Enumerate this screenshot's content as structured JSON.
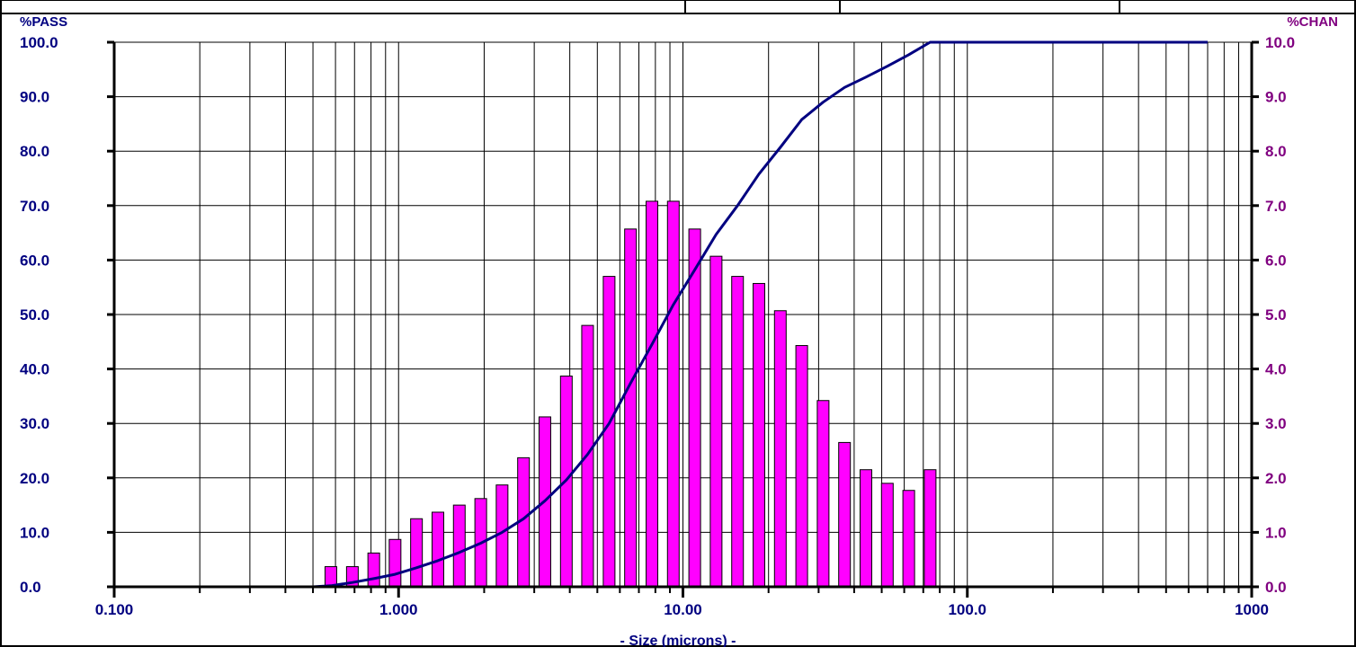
{
  "chart_data": {
    "type": "bar",
    "x_scale": "log",
    "xlabel": "- Size (microns) -",
    "ylabel_left": "%PASS",
    "ylabel_right": "%CHAN",
    "xlim": [
      0.1,
      1000
    ],
    "ylim_left": [
      0,
      100
    ],
    "ylim_right": [
      0,
      10
    ],
    "grid": true,
    "x_ticks": [
      {
        "value": 0.1,
        "label": "0.100"
      },
      {
        "value": 1,
        "label": "1.000"
      },
      {
        "value": 10,
        "label": "10.00"
      },
      {
        "value": 100,
        "label": "100.0"
      },
      {
        "value": 1000,
        "label": "1000"
      }
    ],
    "y_ticks_left": [
      "0.0",
      "10.0",
      "20.0",
      "30.0",
      "40.0",
      "50.0",
      "60.0",
      "70.0",
      "80.0",
      "90.0",
      "100.0"
    ],
    "y_ticks_right": [
      "0.0",
      "1.0",
      "2.0",
      "3.0",
      "4.0",
      "5.0",
      "6.0",
      "7.0",
      "8.0",
      "9.0",
      "10.0"
    ],
    "colors": {
      "bars": "#ff00ff",
      "line": "#000080",
      "left_axis_text": "#000080",
      "right_axis_text": "#800080"
    },
    "series": [
      {
        "type": "bar",
        "axis": "right",
        "x": [
          0.578,
          0.688,
          0.818,
          0.972,
          1.156,
          1.375,
          1.635,
          1.945,
          2.312,
          2.75,
          3.27,
          3.89,
          4.62,
          5.5,
          6.54,
          7.78,
          9.25,
          11.0,
          13.08,
          15.56,
          18.5,
          22.0,
          26.16,
          31.11,
          37.0,
          44.0,
          52.33,
          62.23,
          74.0
        ],
        "values": [
          0.37,
          0.37,
          0.62,
          0.87,
          1.25,
          1.37,
          1.5,
          1.62,
          1.87,
          2.37,
          3.12,
          3.87,
          4.8,
          5.7,
          6.57,
          7.08,
          7.08,
          6.57,
          6.07,
          5.7,
          5.57,
          5.07,
          4.43,
          3.42,
          2.65,
          2.15,
          1.9,
          1.77,
          2.15
        ]
      },
      {
        "type": "line",
        "axis": "left",
        "x": [
          0.15,
          0.5,
          0.578,
          0.688,
          0.818,
          0.972,
          1.156,
          1.375,
          1.635,
          1.945,
          2.312,
          2.75,
          3.27,
          3.89,
          4.62,
          5.5,
          6.54,
          7.78,
          9.25,
          11.0,
          13.08,
          15.56,
          18.5,
          22.0,
          26.16,
          31.11,
          37.0,
          44.0,
          52.33,
          62.23,
          74.0,
          700
        ],
        "values": [
          0.0,
          0.0,
          0.2,
          0.8,
          1.5,
          2.3,
          3.5,
          4.8,
          6.3,
          8.0,
          10.0,
          12.5,
          15.8,
          19.6,
          24.3,
          30.0,
          37.4,
          44.5,
          51.8,
          58.2,
          64.7,
          70.0,
          75.8,
          80.7,
          85.8,
          89.0,
          91.7,
          93.6,
          95.6,
          97.7,
          100.0,
          100.0
        ]
      }
    ]
  }
}
